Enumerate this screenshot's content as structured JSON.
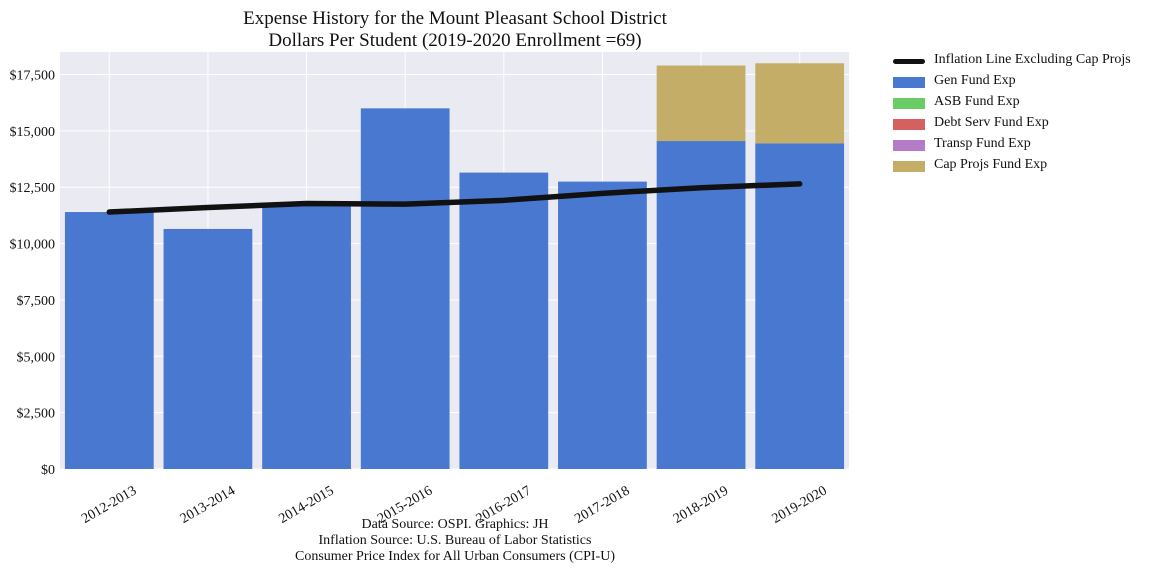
{
  "title": {
    "line1": "Expense History for the Mount Pleasant School District",
    "line2": "Dollars Per Student (2019-2020 Enrollment =69)"
  },
  "source": {
    "line1": "Data Source: OSPI. Graphics: JH",
    "line2": "Inflation Source: U.S. Bureau of Labor Statistics",
    "line3": "Consumer Price Index for All Urban Consumers (CPI-U)"
  },
  "colors": {
    "background": "#eaeaf2",
    "grid": "#ffffff",
    "gen": "#4878d0",
    "asb": "#6acc64",
    "debt": "#d65f5f",
    "transp": "#b47cc7",
    "cap": "#c4ad66",
    "inflation": "#111111"
  },
  "legend": [
    {
      "label": "Inflation Line Excluding Cap Projs",
      "kind": "line",
      "color": "#111111"
    },
    {
      "label": "Gen Fund Exp",
      "kind": "patch",
      "color": "#4878d0"
    },
    {
      "label": "ASB Fund Exp",
      "kind": "patch",
      "color": "#6acc64"
    },
    {
      "label": "Debt Serv Fund Exp",
      "kind": "patch",
      "color": "#d65f5f"
    },
    {
      "label": "Transp Fund Exp",
      "kind": "patch",
      "color": "#b47cc7"
    },
    {
      "label": "Cap Projs Fund Exp",
      "kind": "patch",
      "color": "#c4ad66"
    }
  ],
  "chart_data": {
    "type": "bar",
    "stacked": true,
    "categories": [
      "2012-2013",
      "2013-2014",
      "2014-2015",
      "2015-2016",
      "2016-2017",
      "2017-2018",
      "2018-2019",
      "2019-2020"
    ],
    "series": [
      {
        "name": "Gen Fund Exp",
        "values": [
          11400,
          10650,
          11700,
          16000,
          13150,
          12750,
          14550,
          14450
        ]
      },
      {
        "name": "ASB Fund Exp",
        "values": [
          0,
          0,
          0,
          0,
          0,
          0,
          0,
          0
        ]
      },
      {
        "name": "Debt Serv Fund Exp",
        "values": [
          0,
          0,
          0,
          0,
          0,
          0,
          0,
          0
        ]
      },
      {
        "name": "Transp Fund Exp",
        "values": [
          0,
          0,
          0,
          0,
          0,
          0,
          0,
          0
        ]
      },
      {
        "name": "Cap Projs Fund Exp",
        "values": [
          0,
          0,
          0,
          0,
          0,
          0,
          3350,
          3550
        ]
      }
    ],
    "line": {
      "name": "Inflation Line Excluding Cap Projs",
      "values": [
        11400,
        11600,
        11780,
        11750,
        11920,
        12230,
        12480,
        12650
      ]
    },
    "ylim": [
      0,
      18500
    ],
    "yticks": [
      0,
      2500,
      5000,
      7500,
      10000,
      12500,
      15000,
      17500
    ],
    "ytick_labels": [
      "$0",
      "$2,500",
      "$5,000",
      "$7,500",
      "$10,000",
      "$12,500",
      "$15,000",
      "$17,500"
    ],
    "grid": true,
    "legend_position": "outside-top-right",
    "xtick_rotation": 30
  }
}
